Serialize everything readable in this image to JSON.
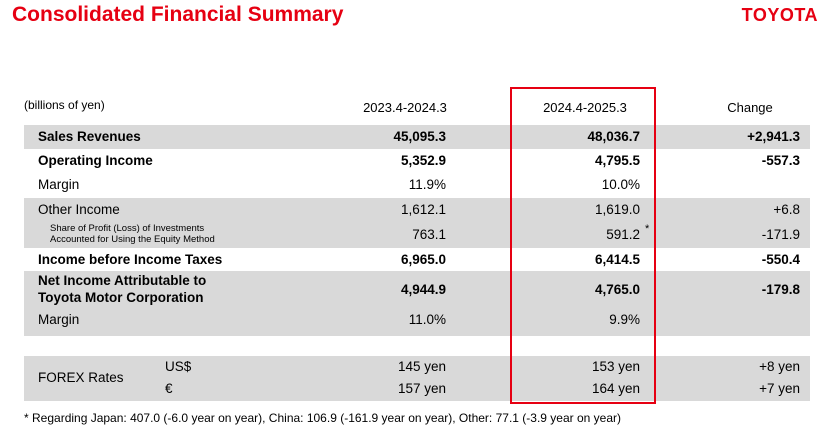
{
  "title": "Consolidated Financial Summary",
  "brand": "TOYOTA",
  "units": "(billions of yen)",
  "columns": [
    "2023.4-2024.3",
    "2024.4-2025.3",
    "Change"
  ],
  "rows": {
    "sales": {
      "label": "Sales Revenues",
      "v1": "45,095.3",
      "v2": "48,036.7",
      "chg": "+2,941.3"
    },
    "opinc": {
      "label": "Operating Income",
      "v1": "5,352.9",
      "v2": "4,795.5",
      "chg": "-557.3"
    },
    "margin1": {
      "label": "Margin",
      "v1": "11.9%",
      "v2": "10.0%",
      "chg": ""
    },
    "other": {
      "label": "Other Income",
      "v1": "1,612.1",
      "v2": "1,619.0",
      "chg": "+6.8"
    },
    "equity": {
      "label1": "Share of Profit (Loss) of Investments",
      "label2": "Accounted for Using the Equity Method",
      "v1": "763.1",
      "v2": "591.2",
      "mark": "*",
      "chg": "-171.9"
    },
    "pretax": {
      "label": "Income before Income Taxes",
      "v1": "6,965.0",
      "v2": "6,414.5",
      "chg": "-550.4"
    },
    "netinc": {
      "label1": "Net Income Attributable to",
      "label2": "Toyota Motor Corporation",
      "v1": "4,944.9",
      "v2": "4,765.0",
      "chg": "-179.8"
    },
    "margin2": {
      "label": "Margin",
      "v1": "11.0%",
      "v2": "9.9%",
      "chg": ""
    }
  },
  "forex": {
    "label": "FOREX Rates",
    "usd": {
      "currency": "US$",
      "v1": "145 yen",
      "v2": "153 yen",
      "chg": "+8 yen"
    },
    "eur": {
      "currency": "€",
      "v1": "157 yen",
      "v2": "164 yen",
      "chg": "+7 yen"
    }
  },
  "footnote": "* Regarding Japan: 407.0 (-6.0 year on year), China: 106.9  (-161.9 year on year), Other: 77.1 (-3.9 year on year)",
  "colors": {
    "accent": "#e60012",
    "band": "#d9d9d9"
  }
}
